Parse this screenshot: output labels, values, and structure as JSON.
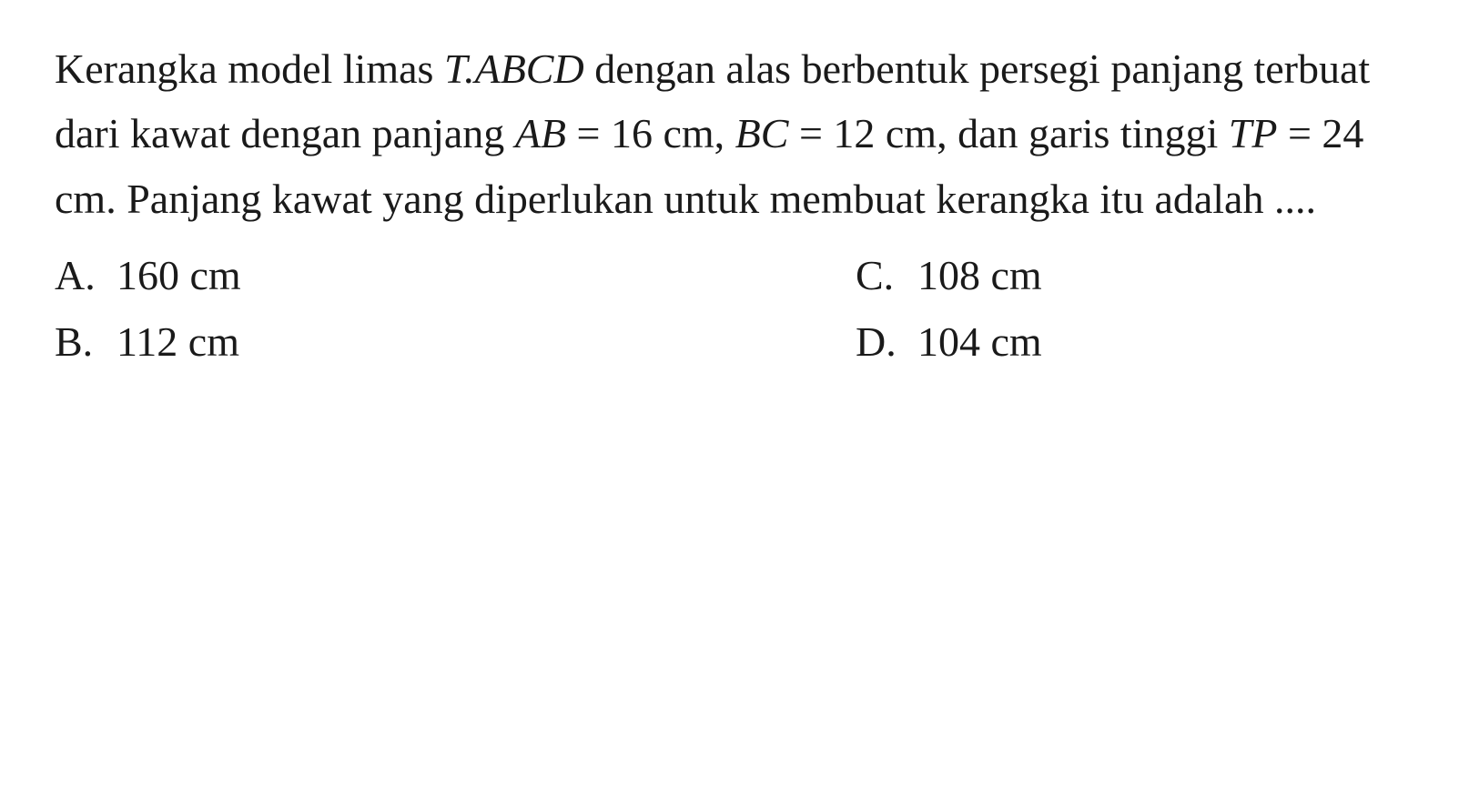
{
  "question": {
    "text_parts": {
      "p1": "Kerangka model limas ",
      "p2": "T.ABCD",
      "p3": " dengan alas berbentuk persegi panjang terbuat dari kawat dengan panjang ",
      "p4": "AB",
      "p5": " = 16 cm, ",
      "p6": "BC",
      "p7": " = 12 cm, dan garis tinggi ",
      "p8": "TP",
      "p9": " = 24 cm. Panjang kawat yang diperlukan untuk membuat kerangka itu adalah ...."
    }
  },
  "options": {
    "a": {
      "letter": "A.",
      "text": "160 cm"
    },
    "b": {
      "letter": "B.",
      "text": "112 cm"
    },
    "c": {
      "letter": "C.",
      "text": "108 cm"
    },
    "d": {
      "letter": "D.",
      "text": "104 cm"
    }
  },
  "styling": {
    "font_family": "Garamond, Georgia, Times New Roman, serif",
    "font_size_pt": 34,
    "text_color": "#1a1a1a",
    "background_color": "#ffffff",
    "line_height": 1.55
  }
}
